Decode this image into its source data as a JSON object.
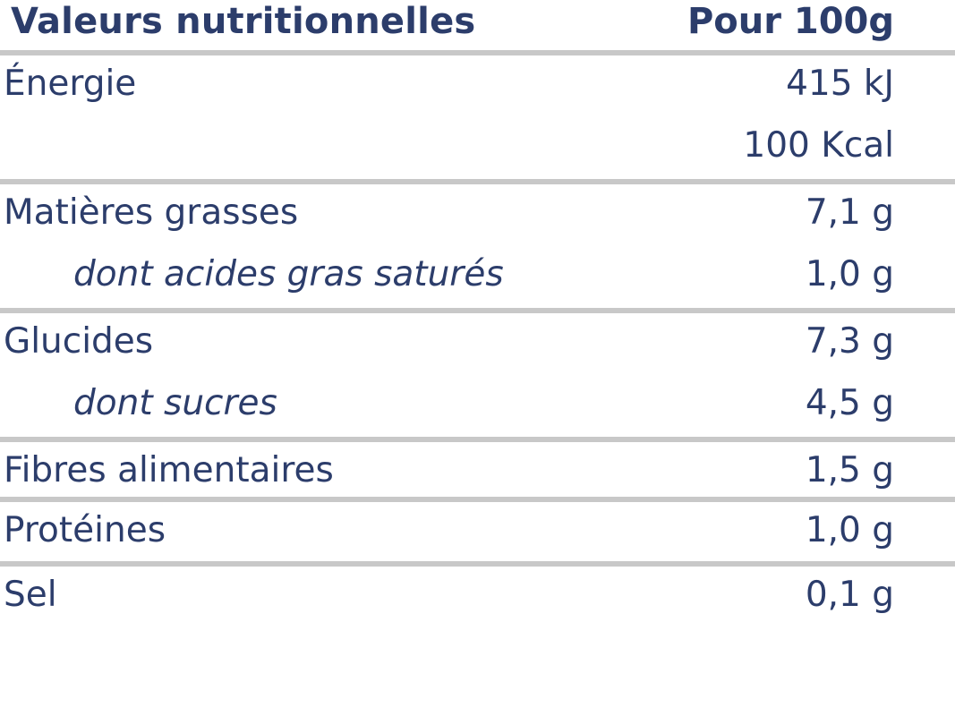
{
  "header": {
    "title": "Valeurs nutritionnelles",
    "per": "Pour 100g"
  },
  "rows": [
    {
      "label": "Énergie",
      "values": [
        "415 kJ",
        "100 Kcal"
      ]
    },
    {
      "label": "Matières grasses",
      "value": "7,1 g",
      "sub": {
        "label": "dont acides gras saturés",
        "value": "1,0 g"
      }
    },
    {
      "label": "Glucides",
      "value": "7,3 g",
      "sub": {
        "label": "dont sucres",
        "value": "4,5 g"
      }
    },
    {
      "label": "Fibres alimentaires",
      "value": "1,5 g"
    },
    {
      "label": "Protéines",
      "value": "1,0 g"
    },
    {
      "label": "Sel",
      "value": "0,1 g"
    }
  ],
  "colors": {
    "text": "#2c3d6b",
    "separator": "#c8c8c8",
    "background": "#ffffff"
  }
}
